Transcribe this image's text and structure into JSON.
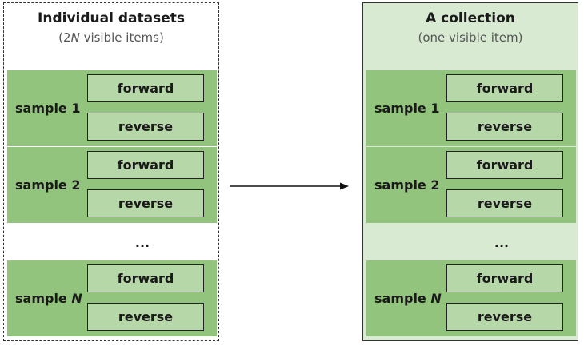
{
  "panels": [
    {
      "title": "Individual datasets",
      "subtitle_prefix": "(2",
      "subtitle_italic": "N",
      "subtitle_suffix": " visible items)"
    },
    {
      "title": "A collection",
      "subtitle_prefix": "(one visible item)",
      "subtitle_italic": "",
      "subtitle_suffix": ""
    }
  ],
  "samples": [
    {
      "label": "sample ",
      "num": "1",
      "num_italic": false
    },
    {
      "label": "sample ",
      "num": "2",
      "num_italic": false
    },
    {
      "label": "sample ",
      "num": "N",
      "num_italic": true
    }
  ],
  "reads": {
    "forward": "forward",
    "reverse": "reverse"
  },
  "ellipsis": "...",
  "colors": {
    "sample_fill": "#93c47d",
    "read_fill": "#b6d7a8",
    "collection_fill": "#d9ead3"
  }
}
